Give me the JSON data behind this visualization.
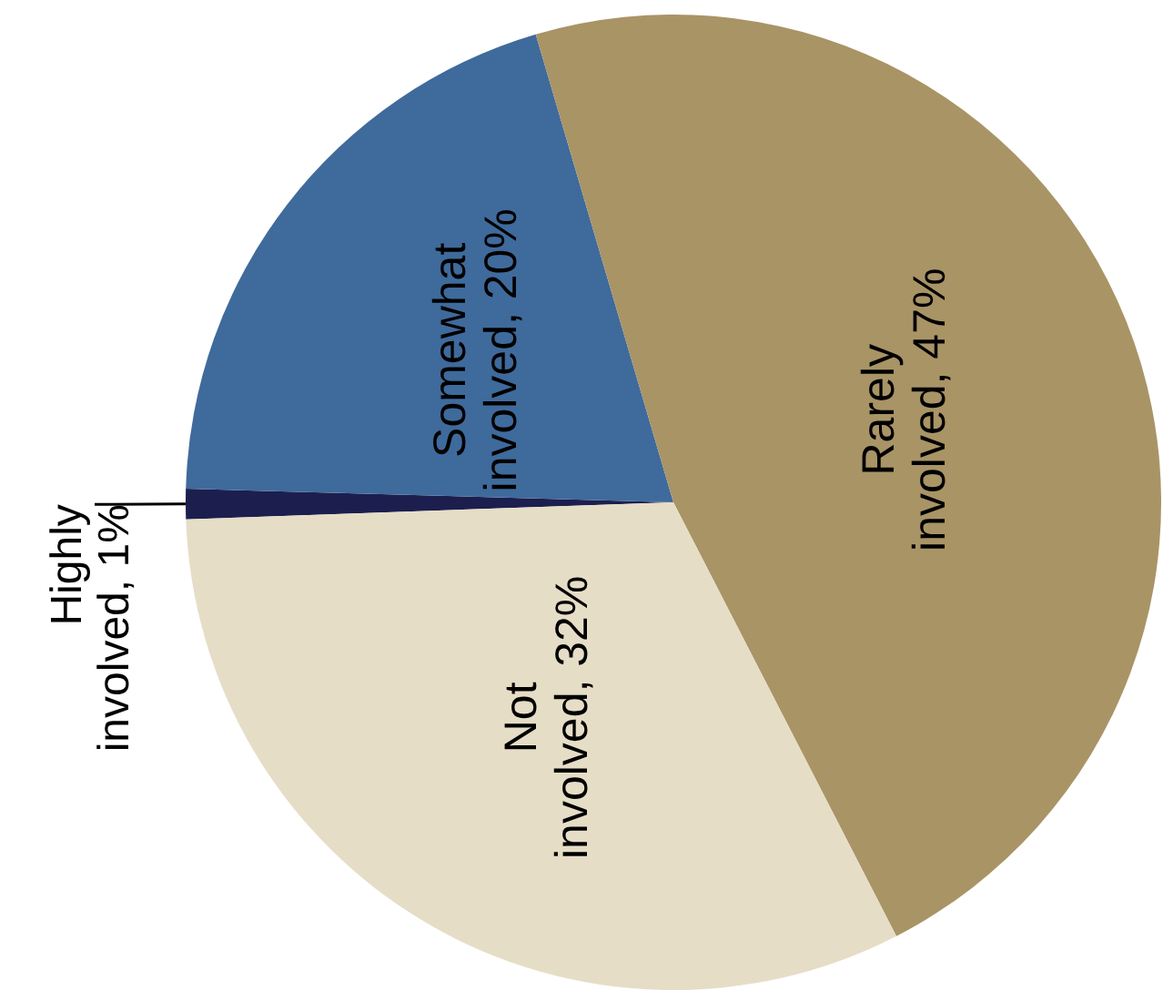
{
  "chart_data": {
    "type": "pie",
    "categories": [
      "Highly involved",
      "Somewhat involved",
      "Rarely involved",
      "Not involved"
    ],
    "values": [
      1,
      20,
      47,
      32
    ],
    "value_labels": [
      "1%",
      "20%",
      "47%",
      "32%"
    ],
    "colors": [
      "#1c1f4e",
      "#3f6a9c",
      "#a99466",
      "#e6ddc6"
    ],
    "legend": false
  }
}
